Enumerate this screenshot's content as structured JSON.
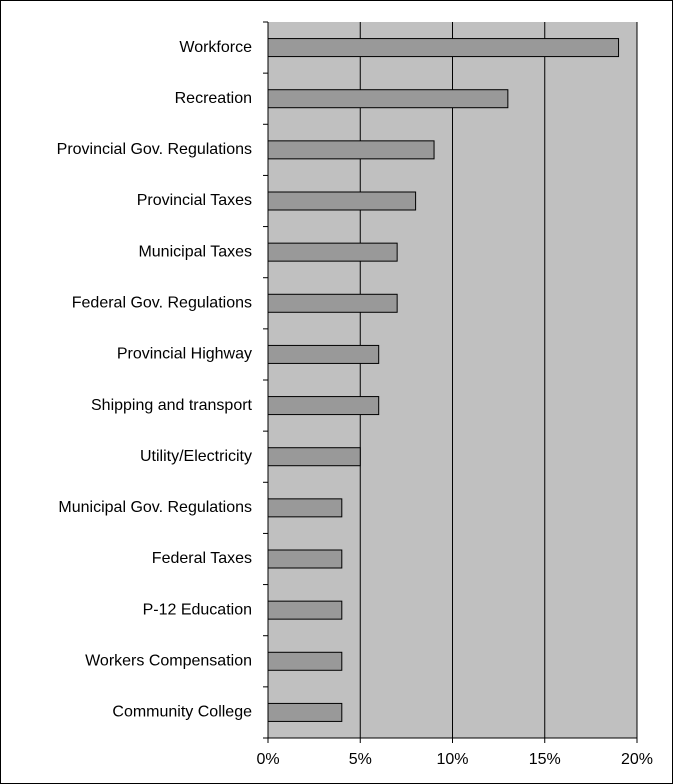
{
  "chart_data": {
    "type": "hbar",
    "categories": [
      "Workforce",
      "Recreation",
      "Provincial Gov. Regulations",
      "Provincial Taxes",
      "Municipal Taxes",
      "Federal Gov. Regulations",
      "Provincial Highway",
      "Shipping and transport",
      "Utility/Electricity",
      "Municipal Gov. Regulations",
      "Federal Taxes",
      "P-12 Education",
      "Workers Compensation",
      "Community College"
    ],
    "values": [
      19,
      13,
      9,
      8,
      7,
      7,
      6,
      6,
      5,
      4,
      4,
      4,
      4,
      4
    ],
    "color": "#999999",
    "xlim": [
      0,
      20
    ],
    "xticks": [
      {
        "value": 0,
        "label": "0%"
      },
      {
        "value": 5,
        "label": "5%"
      },
      {
        "value": 10,
        "label": "10%"
      },
      {
        "value": 15,
        "label": "15%"
      },
      {
        "value": 20,
        "label": "20%"
      }
    ],
    "grid": true,
    "plot_background": "#c0c0c0"
  }
}
